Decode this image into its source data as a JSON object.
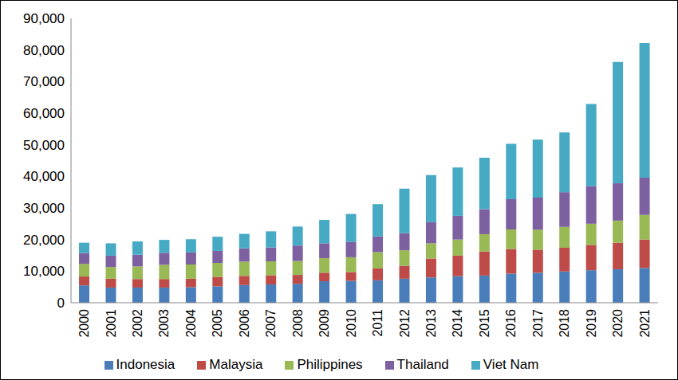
{
  "chart_data": {
    "type": "bar",
    "stacked": true,
    "grid": false,
    "legend": "bottom",
    "categories": [
      "2000",
      "2001",
      "2002",
      "2003",
      "2004",
      "2005",
      "2006",
      "2007",
      "2008",
      "2009",
      "2010",
      "2011",
      "2012",
      "2013",
      "2014",
      "2015",
      "2016",
      "2017",
      "2018",
      "2019",
      "2020",
      "2021"
    ],
    "ylim": [
      0,
      90000
    ],
    "yticks": [
      0,
      {
        "value": 10000,
        "label": "10,000"
      },
      {
        "value": 20000,
        "label": "20,000"
      },
      {
        "value": 30000,
        "label": "30,000"
      },
      {
        "value": 40000,
        "label": "40,000"
      },
      {
        "value": 50000,
        "label": "50,000"
      },
      {
        "value": 60000,
        "label": "60,000"
      },
      {
        "value": 70000,
        "label": "70,000"
      },
      {
        "value": 80000,
        "label": "80,000"
      },
      {
        "value": 90000,
        "label": "90,000"
      }
    ],
    "series": [
      {
        "name": "Indonesia",
        "color": "#4a7ebb",
        "values": [
          5500,
          4800,
          4800,
          4800,
          4900,
          5200,
          5600,
          5800,
          6000,
          6800,
          6900,
          7100,
          7600,
          8000,
          8400,
          8600,
          9200,
          9500,
          9900,
          10300,
          10600,
          11000
        ]
      },
      {
        "name": "Malaysia",
        "color": "#be4b48",
        "values": [
          2800,
          2800,
          2700,
          2700,
          2700,
          3000,
          2900,
          2900,
          2800,
          2700,
          2800,
          3800,
          4100,
          6000,
          6500,
          7600,
          7800,
          7300,
          7500,
          8000,
          8400,
          9000
        ]
      },
      {
        "name": "Philippines",
        "color": "#98b954",
        "values": [
          4000,
          3700,
          4000,
          4500,
          4500,
          4400,
          4500,
          4400,
          4400,
          4600,
          4700,
          5100,
          4900,
          4800,
          5100,
          5500,
          6200,
          6300,
          6600,
          6700,
          7000,
          7800
        ]
      },
      {
        "name": "Thailand",
        "color": "#7d60a0",
        "values": [
          3400,
          3600,
          3700,
          3800,
          3800,
          3800,
          4200,
          4400,
          4900,
          4700,
          4800,
          5000,
          5400,
          6700,
          7500,
          7900,
          9600,
          10200,
          11000,
          11900,
          11800,
          11800
        ]
      },
      {
        "name": "Viet Nam",
        "color": "#46aac5",
        "values": [
          3300,
          3900,
          4200,
          4100,
          4200,
          4500,
          4600,
          5100,
          6000,
          7400,
          8900,
          10200,
          14100,
          14900,
          15300,
          16300,
          17500,
          18300,
          18900,
          26000,
          38400,
          42600
        ]
      }
    ]
  }
}
